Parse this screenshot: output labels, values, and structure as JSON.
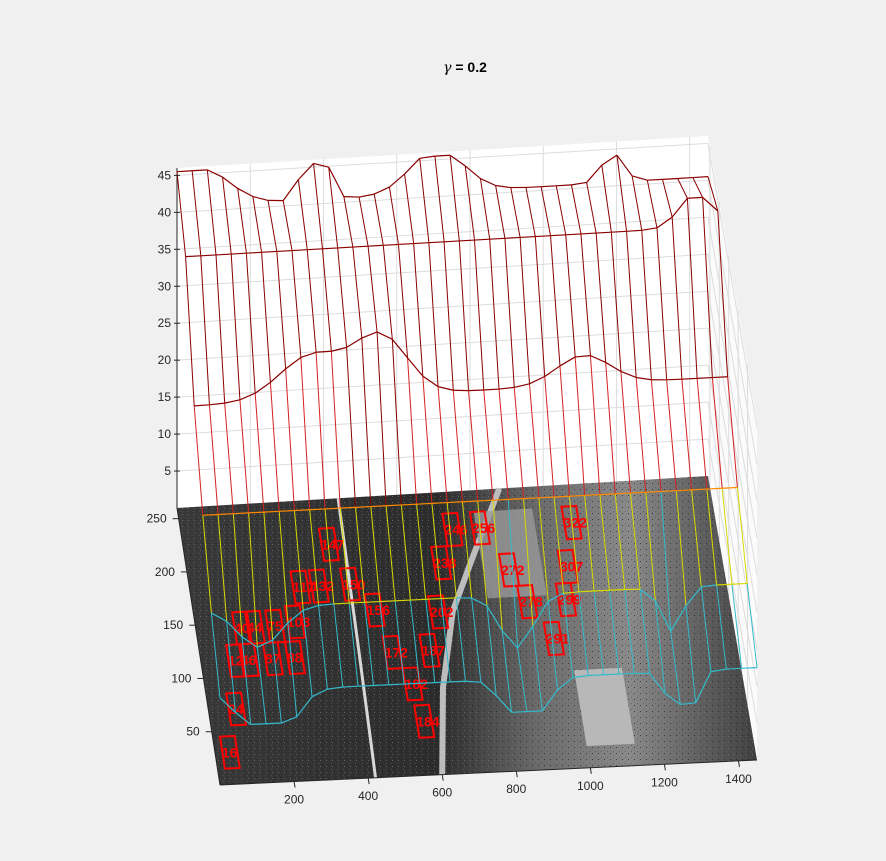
{
  "chart_data": {
    "type": "surface-3d",
    "title_symbol": "γ",
    "title": " = 0.2",
    "z_ticks": [
      "5",
      "10",
      "15",
      "20",
      "25",
      "30",
      "35",
      "40",
      "45"
    ],
    "y_ticks": [
      "50",
      "100",
      "150",
      "200",
      "250"
    ],
    "x_ticks": [
      "200",
      "400",
      "600",
      "800",
      "1000",
      "1200",
      "1400"
    ],
    "zlim": [
      0,
      46
    ],
    "ylim": [
      0,
      260
    ],
    "xlim": [
      0,
      1450
    ],
    "surface": {
      "x_samples": 36,
      "row_baselines": [
        40.5,
        41.5,
        28.8,
        21.5,
        16.2,
        12.5
      ],
      "peaks": [
        {
          "x": 0.03,
          "row": 0,
          "amp": 6,
          "w": 0.06
        },
        {
          "x": 0.26,
          "row": 0,
          "amp": 10,
          "w": 0.02
        },
        {
          "x": 0.49,
          "row": 0,
          "amp": 6,
          "w": 0.05
        },
        {
          "x": 0.82,
          "row": 0,
          "amp": 4,
          "w": 0.02
        },
        {
          "x": 0.22,
          "row": 2,
          "amp": 6,
          "w": 0.06
        },
        {
          "x": 0.35,
          "row": 2,
          "amp": 8,
          "w": 0.05
        },
        {
          "x": 0.73,
          "row": 2,
          "amp": 4,
          "w": 0.05
        },
        {
          "x": 0.96,
          "row": 1,
          "amp": 5,
          "w": 0.03
        }
      ],
      "dips": [
        {
          "x": 0.09,
          "depth": 9,
          "w": 0.04
        },
        {
          "x": 0.57,
          "depth": 12,
          "w": 0.03
        },
        {
          "x": 0.86,
          "depth": 10,
          "w": 0.02
        }
      ]
    },
    "boxes": [
      {
        "label": "16",
        "x": 40,
        "y": 30
      },
      {
        "label": "24",
        "x": 75,
        "y": 70
      },
      {
        "label": "12",
        "x": 95,
        "y": 115
      },
      {
        "label": "40",
        "x": 125,
        "y": 145
      },
      {
        "label": "44",
        "x": 160,
        "y": 145
      },
      {
        "label": "46",
        "x": 130,
        "y": 115
      },
      {
        "label": "87",
        "x": 195,
        "y": 115
      },
      {
        "label": "75",
        "x": 215,
        "y": 145
      },
      {
        "label": "88",
        "x": 255,
        "y": 115
      },
      {
        "label": "103",
        "x": 270,
        "y": 148
      },
      {
        "label": "117",
        "x": 300,
        "y": 180
      },
      {
        "label": "132",
        "x": 350,
        "y": 180
      },
      {
        "label": "147",
        "x": 395,
        "y": 218
      },
      {
        "label": "150",
        "x": 435,
        "y": 180
      },
      {
        "label": "156",
        "x": 490,
        "y": 155
      },
      {
        "label": "172",
        "x": 520,
        "y": 115
      },
      {
        "label": "182",
        "x": 560,
        "y": 85
      },
      {
        "label": "184",
        "x": 575,
        "y": 50
      },
      {
        "label": "187",
        "x": 620,
        "y": 115
      },
      {
        "label": "202",
        "x": 660,
        "y": 150
      },
      {
        "label": "238",
        "x": 690,
        "y": 195
      },
      {
        "label": "246",
        "x": 735,
        "y": 225
      },
      {
        "label": "256",
        "x": 810,
        "y": 225
      },
      {
        "label": "272",
        "x": 870,
        "y": 185
      },
      {
        "label": "278",
        "x": 905,
        "y": 155
      },
      {
        "label": "291",
        "x": 960,
        "y": 120
      },
      {
        "label": "299",
        "x": 1010,
        "y": 155
      },
      {
        "label": "307",
        "x": 1030,
        "y": 185
      },
      {
        "label": "322",
        "x": 1060,
        "y": 225
      }
    ]
  }
}
